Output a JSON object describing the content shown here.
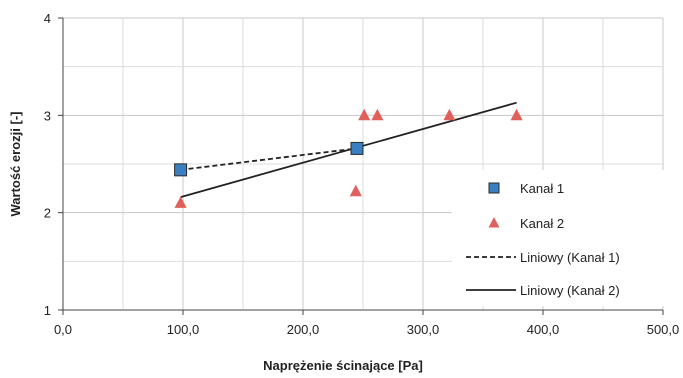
{
  "chart_data": {
    "type": "scatter",
    "xlabel": "Naprężenie ścinające [Pa]",
    "ylabel": "Wartość erozji [-]",
    "xlim": [
      0,
      500
    ],
    "ylim": [
      1,
      4
    ],
    "xticks": [
      0,
      100,
      200,
      300,
      400,
      500
    ],
    "xtick_labels": [
      "0,0",
      "100,0",
      "200,0",
      "300,0",
      "400,0",
      "500,0"
    ],
    "yticks": [
      1,
      2,
      3,
      4
    ],
    "ytick_labels": [
      "1",
      "2",
      "3",
      "4"
    ],
    "grid": true,
    "legend_position": "right",
    "series": [
      {
        "name": "Kanał 1",
        "marker": "square",
        "color": "#3a7fc1",
        "points": [
          [
            98,
            2.44
          ],
          [
            245,
            2.66
          ]
        ]
      },
      {
        "name": "Kanał 2",
        "marker": "triangle",
        "color": "#e0605c",
        "points": [
          [
            98,
            2.1
          ],
          [
            244,
            2.22
          ],
          [
            251,
            3.0
          ],
          [
            262,
            3.0
          ],
          [
            322,
            3.0
          ],
          [
            378,
            3.0
          ]
        ]
      }
    ],
    "trendlines": [
      {
        "name": "Liniowy (Kanał 1)",
        "style": "dashed",
        "color": "#222222",
        "points": [
          [
            98,
            2.44
          ],
          [
            245,
            2.66
          ]
        ]
      },
      {
        "name": "Liniowy (Kanał 2)",
        "style": "solid",
        "color": "#222222",
        "points": [
          [
            98,
            2.16
          ],
          [
            378,
            3.13
          ]
        ]
      }
    ]
  }
}
